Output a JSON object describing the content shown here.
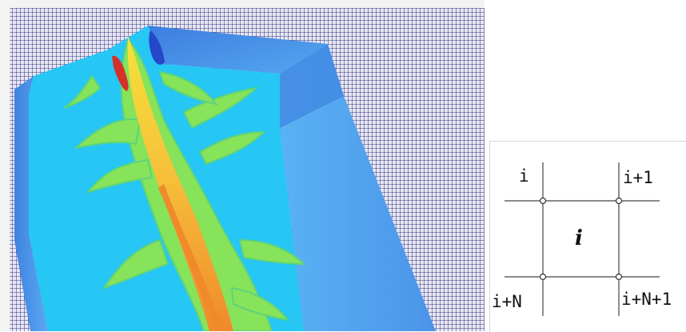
{
  "mesh_figure": {
    "background_grid_color": "#3a3a8c",
    "terrain_colors": {
      "deep_blue": "#2f6fd6",
      "blue": "#4f9ff0",
      "cyan": "#22c4f4",
      "green": "#7be05a",
      "yellow": "#f2e63a",
      "orange": "#f39a2a",
      "red": "#d6302a"
    }
  },
  "stencil": {
    "nodes": {
      "top_left": "i",
      "top_right": "i+1",
      "bottom_left": "i+N",
      "bottom_right": "i+N+1"
    },
    "cell_label": "i"
  }
}
